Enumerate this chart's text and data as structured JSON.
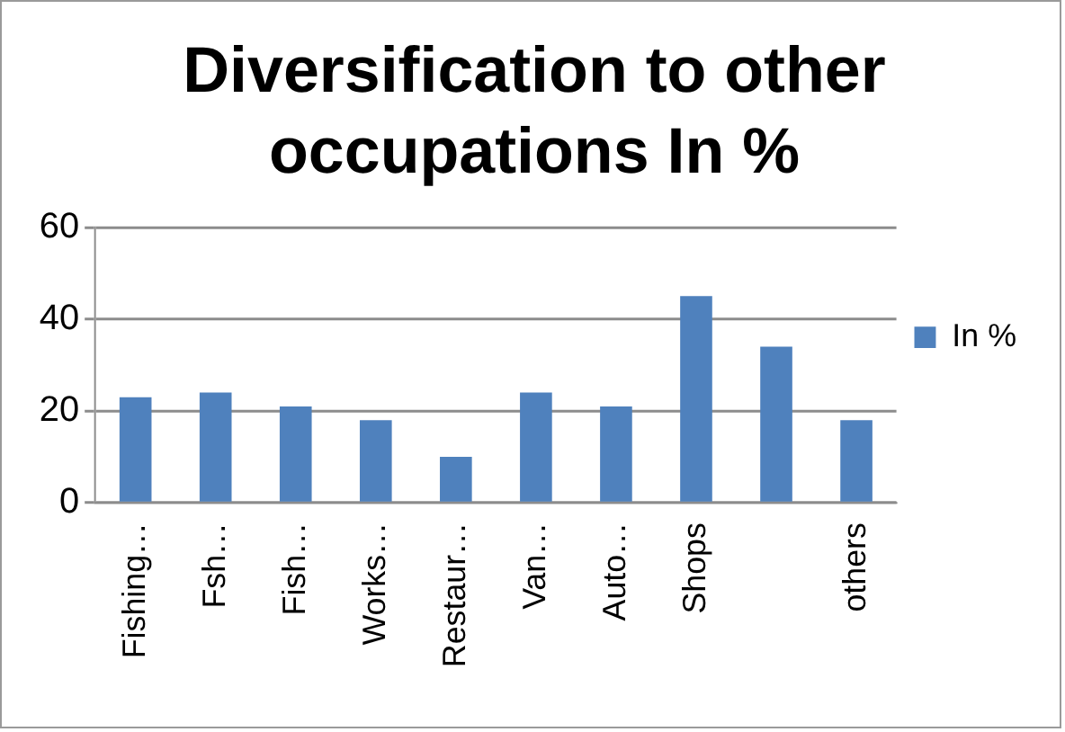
{
  "chart_data": {
    "type": "bar",
    "title": "Diversification to other occupations In %",
    "categories": [
      "Fishing…",
      "Fsh…",
      "Fish…",
      "Works…",
      "Restaur…",
      "Van…",
      "Auto…",
      "Shops",
      null,
      "others"
    ],
    "series": [
      {
        "name": "In %",
        "color": "#4f81bd",
        "values": [
          23,
          24,
          21,
          18,
          10,
          24,
          21,
          45,
          34,
          18
        ]
      }
    ],
    "ylim": [
      0,
      60
    ],
    "yticks": [
      0,
      20,
      40,
      60
    ],
    "grid": "y",
    "legend": "right"
  }
}
